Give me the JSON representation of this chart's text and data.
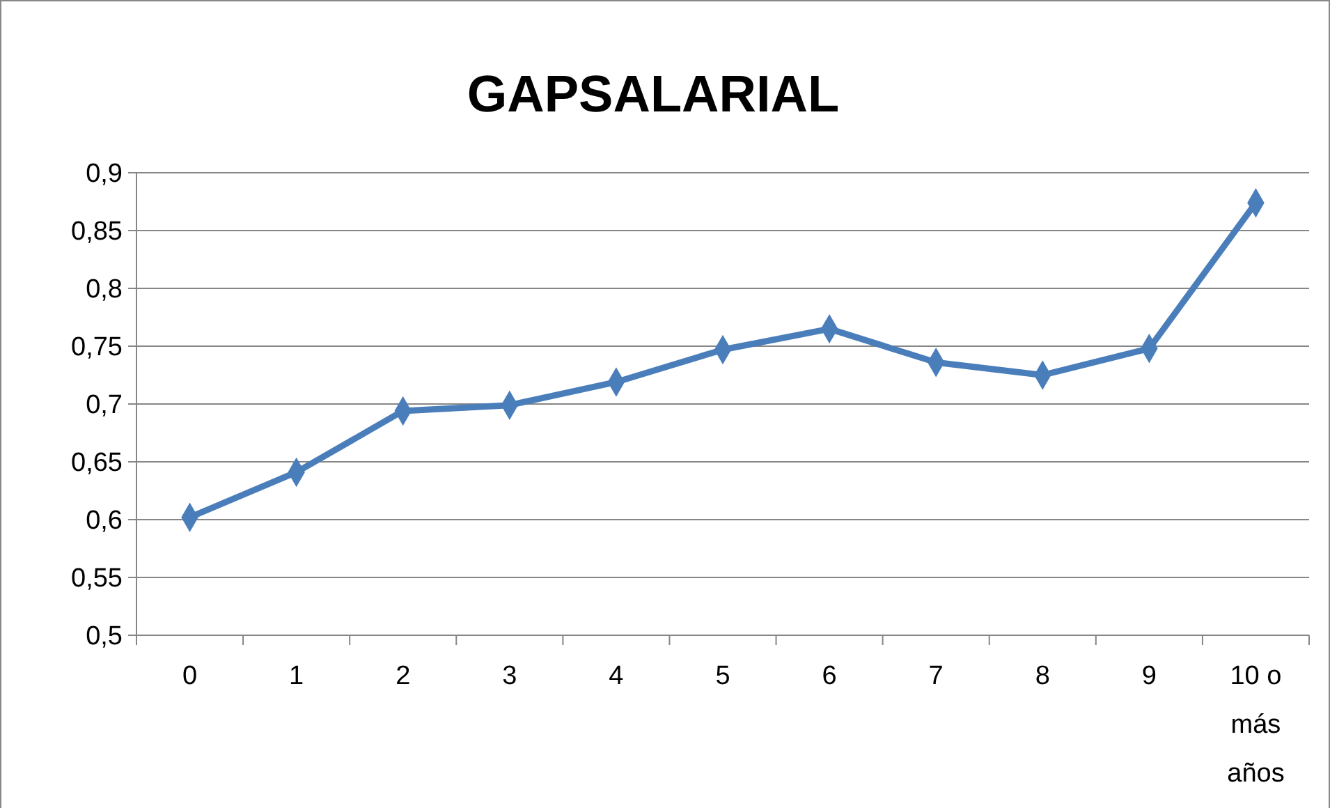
{
  "chart_data": {
    "type": "line",
    "title": "GAPSALARIAL",
    "categories": [
      "0",
      "1",
      "2",
      "3",
      "4",
      "5",
      "6",
      "7",
      "8",
      "9",
      "10 o más años"
    ],
    "series": [
      {
        "color": "#4a7ebb",
        "values": [
          0.602,
          0.641,
          0.694,
          0.699,
          0.719,
          0.747,
          0.765,
          0.736,
          0.725,
          0.748,
          0.874
        ]
      }
    ],
    "ylim": [
      0.5,
      0.9
    ],
    "yticks": [
      {
        "value": 0.5,
        "label": "0,5"
      },
      {
        "value": 0.55,
        "label": "0,55"
      },
      {
        "value": 0.6,
        "label": "0,6"
      },
      {
        "value": 0.65,
        "label": "0,65"
      },
      {
        "value": 0.7,
        "label": "0,7"
      },
      {
        "value": 0.75,
        "label": "0,75"
      },
      {
        "value": 0.8,
        "label": "0,8"
      },
      {
        "value": 0.85,
        "label": "0,85"
      },
      {
        "value": 0.9,
        "label": "0,9"
      }
    ],
    "grid": "y",
    "marker": "diamond",
    "line_style": "solid"
  }
}
